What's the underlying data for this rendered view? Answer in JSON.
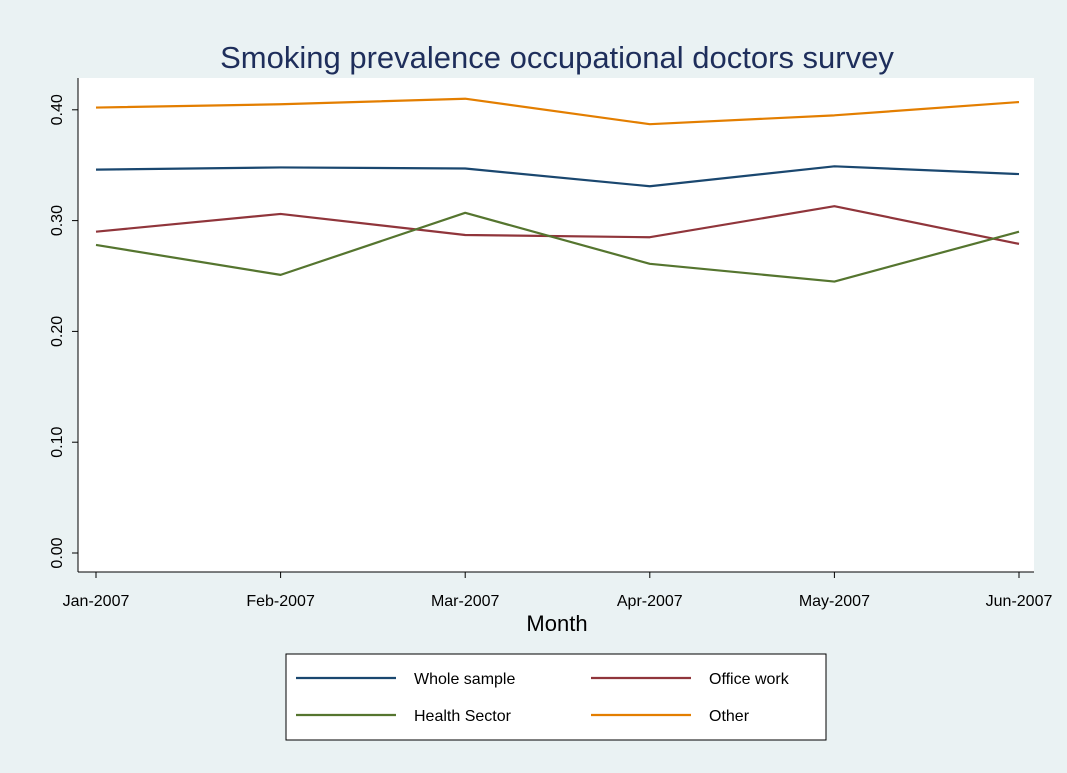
{
  "colors": {
    "background": "#eaf2f3",
    "plot_background": "#ffffff",
    "title": "#1e2e5b"
  },
  "chart_data": {
    "type": "line",
    "title": "Smoking prevalence occupational doctors survey",
    "xlabel": "Month",
    "ylabel": "",
    "categories": [
      "Jan-2007",
      "Feb-2007",
      "Mar-2007",
      "Apr-2007",
      "May-2007",
      "Jun-2007"
    ],
    "ylim": [
      0,
      0.42
    ],
    "yticks": [
      0.0,
      0.1,
      0.2,
      0.3,
      0.4
    ],
    "ytick_labels": [
      "0.00",
      "0.10",
      "0.20",
      "0.30",
      "0.40"
    ],
    "grid": false,
    "legend_position": "bottom",
    "series": [
      {
        "name": "Whole sample",
        "color": "#1a476f",
        "values": [
          0.346,
          0.348,
          0.347,
          0.331,
          0.349,
          0.342
        ]
      },
      {
        "name": "Office work",
        "color": "#90353b",
        "values": [
          0.29,
          0.306,
          0.287,
          0.285,
          0.313,
          0.279
        ]
      },
      {
        "name": "Health Sector",
        "color": "#55752f",
        "values": [
          0.278,
          0.251,
          0.307,
          0.261,
          0.245,
          0.29
        ]
      },
      {
        "name": "Other",
        "color": "#e37e00",
        "values": [
          0.402,
          0.405,
          0.41,
          0.387,
          0.395,
          0.407
        ]
      }
    ]
  }
}
